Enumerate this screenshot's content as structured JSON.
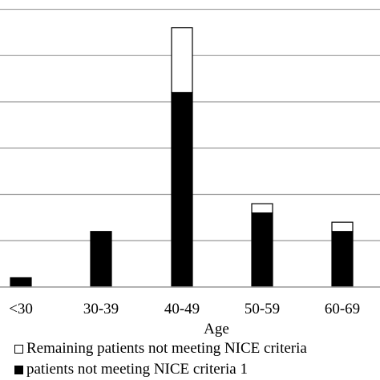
{
  "chart_data": {
    "type": "bar",
    "stacked": true,
    "categories": [
      "<30",
      "30-39",
      "40-49",
      "50-59",
      "60-69"
    ],
    "series": [
      {
        "name": "patients not meeting NICE criteria 1",
        "color": "#000000",
        "values": [
          2,
          12,
          42,
          16,
          12
        ]
      },
      {
        "name": "Remaining patients not meeting NICE criteria",
        "color": "#ffffff",
        "values": [
          0,
          0,
          14,
          2,
          2
        ]
      }
    ],
    "xlabel": "Age",
    "ylim": [
      0,
      62
    ],
    "grid": true,
    "legend_position": "bottom"
  }
}
